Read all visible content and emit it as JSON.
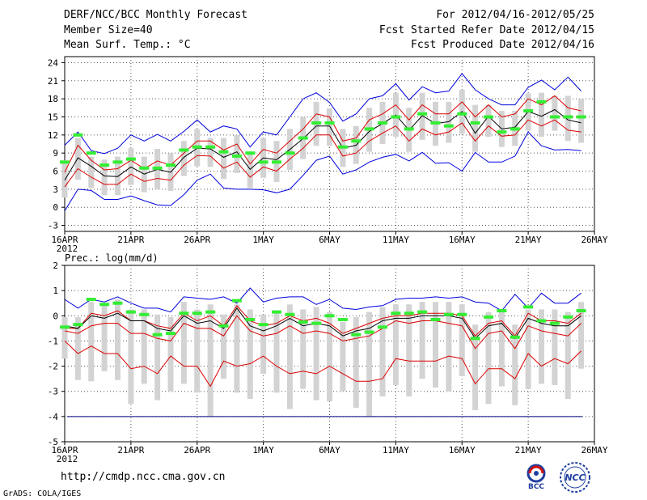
{
  "header": {
    "title": "DERF/NCC/BCC Monthly Forecast",
    "member": "Member Size=40",
    "variable": "Mean Surf. Temp.: °C",
    "forecast_period": "For 2012/04/16-2012/05/25",
    "refer_date": "Fcst Started Refer Date 2012/04/15",
    "produced_date": "Fcst Produced Date 2012/04/16"
  },
  "footer": {
    "url": "http://cmdp.ncc.cma.gov.cn",
    "credit": "GrADS: COLA/IGES",
    "logo_bcc": "BCC",
    "logo_ncc": "NCC"
  },
  "colors": {
    "ensemble_bar": "#d3d3d3",
    "max_line": "#0000dd",
    "pct_line": "#dd0000",
    "median_line": "#000000",
    "obs_mark": "#33ee33"
  },
  "chart_data": [
    {
      "type": "line",
      "title": "Mean Surf. Temp.: °C",
      "ylim": [
        -4,
        25
      ],
      "yticks": [
        -3,
        0,
        3,
        6,
        9,
        12,
        15,
        18,
        21,
        24
      ],
      "xlim": [
        1,
        40
      ],
      "xticks": [
        {
          "day": 1,
          "label": "16APR"
        },
        {
          "day": 6,
          "label": "21APR"
        },
        {
          "day": 11,
          "label": "26APR"
        },
        {
          "day": 16,
          "label": "1MAY"
        },
        {
          "day": 21,
          "label": "6MAY"
        },
        {
          "day": 26,
          "label": "11MAY"
        },
        {
          "day": 31,
          "label": "16MAY"
        },
        {
          "day": 36,
          "label": "21MAY"
        },
        {
          "day": 41,
          "label": "26MAY"
        }
      ],
      "year_label": "2012",
      "series": [
        {
          "name": "ensemble max",
          "values": [
            -0.6,
            3,
            2.8,
            1.3,
            1.3,
            1.9,
            1.1,
            0.4,
            0.3,
            2.1,
            4.5,
            5.5,
            3.2,
            3,
            3,
            2.9,
            2.4,
            3,
            5.3,
            7.8,
            8.5,
            5.5,
            6.2,
            7.5,
            8.3,
            8.8,
            7.7,
            9.1,
            7.3,
            7.4,
            6,
            9.1,
            7.5,
            7.5,
            8.5,
            12.5,
            10.2,
            9.5,
            9.6,
            9.4
          ]
        },
        {
          "name": "ensemble upper",
          "values": [
            10.3,
            12.5,
            9.4,
            8.9,
            9.8,
            12,
            11,
            12.1,
            11,
            12.6,
            14.5,
            12.5,
            13.5,
            13,
            10,
            12.5,
            12,
            15,
            18,
            19,
            17.4,
            14.3,
            15.5,
            18,
            18.5,
            20.5,
            17.8,
            20,
            19,
            19.3,
            22.2,
            19.5,
            18,
            17,
            17,
            19.9,
            21.1,
            19.5,
            21.6,
            19.3
          ]
        },
        {
          "name": "upper percentile",
          "values": [
            5.8,
            10.3,
            7.8,
            6.2,
            6.4,
            7.8,
            6.4,
            7.7,
            7,
            9,
            11,
            11,
            9.5,
            10.5,
            7.2,
            9.6,
            9,
            11,
            13,
            15.5,
            15,
            11,
            11.5,
            14.5,
            15.5,
            17,
            14.5,
            17,
            15.5,
            15.5,
            17.5,
            15,
            17,
            15,
            15.5,
            18,
            17,
            18.5,
            16.5,
            16
          ]
        },
        {
          "name": "median",
          "values": [
            4.5,
            8.2,
            6.8,
            5.2,
            5.1,
            6.7,
            5.5,
            6.3,
            5.8,
            8.3,
            9.8,
            9.7,
            8.3,
            9.2,
            6.3,
            8.2,
            7.9,
            9.6,
            11.4,
            13.5,
            13.5,
            9.8,
            10.3,
            12.6,
            13.9,
            15.3,
            12.8,
            15.2,
            13.9,
            14.2,
            15.9,
            12.3,
            15.1,
            13,
            13.3,
            15.9,
            15.1,
            16.2,
            14.5,
            14
          ]
        },
        {
          "name": "lower percentile",
          "values": [
            3.4,
            6.4,
            5,
            3.8,
            3.8,
            5.5,
            4.3,
            4.8,
            4.5,
            7,
            8.6,
            8.5,
            6.5,
            7.5,
            5,
            6.7,
            6,
            8,
            9.8,
            12,
            12,
            8.5,
            9,
            11,
            12.3,
            13.5,
            11,
            13,
            12,
            12.5,
            14,
            11,
            13.5,
            11.8,
            12,
            14.5,
            13.5,
            14.5,
            12.8,
            12.5
          ]
        },
        {
          "name": "observed",
          "values": [
            7.5,
            12,
            9,
            7,
            7.5,
            8,
            6.5,
            6.5,
            7,
            9.5,
            10,
            10,
            9.2,
            8.5,
            9,
            7.5,
            7.5,
            9,
            11.5,
            14,
            14,
            10,
            11,
            13,
            14,
            15,
            13,
            15.5,
            14,
            13.5,
            15.5,
            14,
            15,
            12.5,
            13,
            16,
            17.5,
            15,
            15,
            15
          ]
        }
      ]
    },
    {
      "type": "line",
      "title": "Prec.: log(mm/d)",
      "ylim": [
        -5,
        2
      ],
      "yticks": [
        -5,
        -4,
        -3,
        -2,
        -1,
        0,
        1,
        2
      ],
      "xlim": [
        1,
        40
      ],
      "xticks": [
        {
          "day": 1,
          "label": "16APR"
        },
        {
          "day": 6,
          "label": "21APR"
        },
        {
          "day": 11,
          "label": "26APR"
        },
        {
          "day": 16,
          "label": "1MAY"
        },
        {
          "day": 21,
          "label": "6MAY"
        },
        {
          "day": 26,
          "label": "11MAY"
        },
        {
          "day": 31,
          "label": "16MAY"
        },
        {
          "day": 36,
          "label": "21MAY"
        },
        {
          "day": 41,
          "label": "26MAY"
        }
      ],
      "year_label": "2012",
      "baseline": -4,
      "series": [
        {
          "name": "ensemble max",
          "values": [
            0.65,
            0.3,
            0.65,
            0.55,
            0.75,
            0.5,
            0.3,
            0.3,
            0.15,
            0.75,
            0.7,
            0.65,
            0.75,
            0.5,
            1.1,
            0.55,
            0.7,
            0.75,
            0.75,
            0.45,
            0.65,
            0.3,
            0.25,
            0.35,
            0.4,
            0.65,
            0.7,
            0.7,
            0.75,
            0.7,
            0.75,
            0.55,
            0.5,
            0.2,
            0.85,
            0.3,
            0.9,
            0.5,
            0.5,
            0.9
          ]
        },
        {
          "name": "upper percentile",
          "values": [
            -0.5,
            -0.5,
            0.1,
            0,
            0.2,
            -0.2,
            -0.2,
            -0.4,
            -0.5,
            0.1,
            -0.2,
            0,
            -0.4,
            0.4,
            -0.2,
            -0.4,
            -0.3,
            0,
            -0.2,
            -0.1,
            -0.3,
            -0.7,
            -0.5,
            -0.3,
            -0.1,
            0,
            0,
            0.1,
            0.1,
            0.1,
            0,
            -0.8,
            -0.3,
            -0.2,
            -0.8,
            0.1,
            -0.2,
            -0.2,
            -0.3,
            0.1
          ]
        },
        {
          "name": "median",
          "values": [
            -0.4,
            -0.5,
            0,
            -0.1,
            0.1,
            -0.2,
            -0.2,
            -0.5,
            -0.6,
            0,
            -0.3,
            -0.2,
            -0.5,
            0.3,
            -0.4,
            -0.6,
            -0.4,
            -0.1,
            -0.4,
            -0.3,
            -0.4,
            -0.8,
            -0.6,
            -0.5,
            -0.2,
            -0.1,
            -0.1,
            0,
            0,
            0,
            -0.1,
            -0.9,
            -0.4,
            -0.3,
            -0.9,
            -0.1,
            -0.3,
            -0.4,
            -0.4,
            0
          ]
        },
        {
          "name": "lower percentile",
          "values": [
            -0.6,
            -0.7,
            -0.4,
            -0.3,
            -0.3,
            -0.7,
            -0.7,
            -0.9,
            -1,
            -0.3,
            -0.5,
            -0.5,
            -0.8,
            0,
            -0.6,
            -0.8,
            -0.7,
            -0.4,
            -0.7,
            -0.6,
            -0.7,
            -1,
            -0.9,
            -0.8,
            -0.5,
            -0.2,
            -0.3,
            -0.2,
            -0.2,
            -0.3,
            -0.4,
            -1.3,
            -0.7,
            -0.6,
            -1.3,
            -0.4,
            -0.6,
            -0.7,
            -0.8,
            -0.3
          ]
        },
        {
          "name": "ensemble lower",
          "values": [
            -1,
            -1.5,
            -1.2,
            -1.5,
            -1.5,
            -2.1,
            -2,
            -2.3,
            -1.6,
            -2,
            -2,
            -2.8,
            -1.8,
            -2,
            -1.9,
            -1.6,
            -2,
            -2.3,
            -2.2,
            -2.3,
            -2,
            -2.3,
            -2.6,
            -2.6,
            -2.5,
            -1.7,
            -1.8,
            -1.8,
            -1.8,
            -1.6,
            -1.7,
            -2.7,
            -2.1,
            -2.1,
            -2.5,
            -1.5,
            -2,
            -1.7,
            -1.9,
            -1.4
          ]
        },
        {
          "name": "observed",
          "values": [
            -0.45,
            -0.35,
            0.65,
            0.45,
            0.5,
            0.15,
            0.05,
            -0.75,
            -0.7,
            0.1,
            0.1,
            0.15,
            -0.4,
            0.6,
            -0.15,
            -0.35,
            0.15,
            0.05,
            -0.25,
            -0.3,
            0,
            -0.15,
            -0.75,
            -0.65,
            -0.45,
            0.1,
            0.1,
            0.15,
            -0.15,
            0.05,
            0.05,
            -0.9,
            -0.05,
            0.2,
            -0.85,
            0.35,
            -0.2,
            -0.3,
            -0.05,
            0.2
          ]
        }
      ]
    }
  ]
}
